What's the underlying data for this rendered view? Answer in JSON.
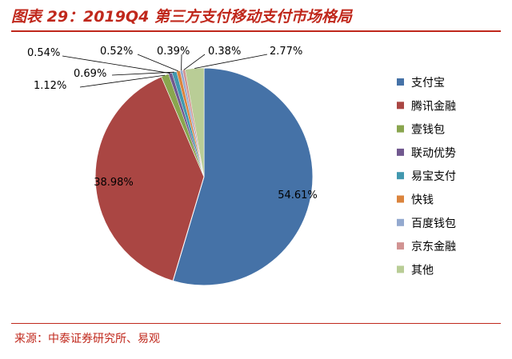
{
  "header": {
    "title": "图表 29：2019Q4 第三方支付移动支付市场格局"
  },
  "footer": {
    "source": "来源：中泰证券研究所、易观"
  },
  "chart_data": {
    "type": "pie",
    "title": "",
    "categories": [
      "支付宝",
      "腾讯金融",
      "壹钱包",
      "联动优势",
      "易宝支付",
      "快钱",
      "百度钱包",
      "京东金融",
      "其他"
    ],
    "values": [
      54.61,
      38.98,
      1.12,
      0.54,
      0.69,
      0.52,
      0.39,
      0.38,
      2.77
    ],
    "labels": [
      "54.61%",
      "38.98%",
      "1.12%",
      "0.54%",
      "0.69%",
      "0.52%",
      "0.39%",
      "0.38%",
      "2.77%"
    ],
    "colors": [
      "#4572a7",
      "#aa4643",
      "#89a54e",
      "#71588f",
      "#4198af",
      "#db843d",
      "#93a9cf",
      "#d19392",
      "#b9cd96"
    ],
    "legend_position": "right"
  }
}
